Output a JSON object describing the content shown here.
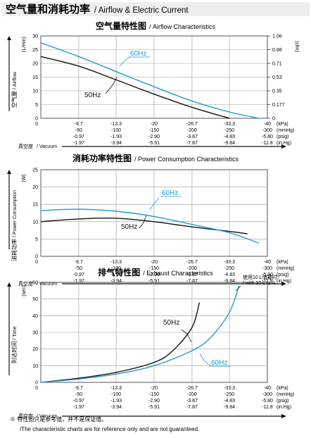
{
  "header": {
    "title_zh": "空气量和消耗功率",
    "title_en": "/ Airflow & Electric Current"
  },
  "vacuum_axis": {
    "row_kpa": [
      "-6.7",
      "-13.3",
      "-20",
      "-26.7",
      "-33.3",
      "-40"
    ],
    "row_mmhg": [
      "-50",
      "-100",
      "-150",
      "-200",
      "-250",
      "-300"
    ],
    "row_psig": [
      "-0.97",
      "-1.93",
      "-2.90",
      "-3.87",
      "-4.83",
      "-5.80"
    ],
    "row_inhg": [
      "-1.97",
      "-3.94",
      "-5.91",
      "-7.87",
      "-9.84",
      "-11.8"
    ],
    "units": [
      "(kPa)",
      "(mmHg)",
      "(psig)",
      "(in.Hg)"
    ],
    "origin_label": "0",
    "xlabel_zh": "真空度",
    "xlabel_en": "/ Vacuum"
  },
  "chart_data": [
    {
      "type": "line",
      "title_zh": "空气量特性图",
      "title_en": "/ Airflow Characteristics",
      "ylabel_zh": "空气量",
      "ylabel_en": "/ Airflow",
      "yunit": "(L/min)",
      "y2unit": "(cfm)",
      "ylim": [
        0,
        30
      ],
      "yticks": [
        "0",
        "5",
        "10",
        "15",
        "20",
        "25",
        "30"
      ],
      "y2ticks": [
        "0",
        "0.177",
        "0.35",
        "0.53",
        "0.71",
        "0.88",
        "1.06"
      ],
      "xlim": [
        0,
        40
      ],
      "series": [
        {
          "name": "50Hz",
          "color": "#111111",
          "x": [
            0,
            6.7,
            13.3,
            20,
            26.7,
            33.3
          ],
          "y": [
            22.5,
            19,
            14,
            8.8,
            4,
            0
          ]
        },
        {
          "name": "60Hz",
          "color": "#1e9ad6",
          "x": [
            0,
            6.7,
            13.3,
            20,
            26.7,
            33.3,
            38.5
          ],
          "y": [
            27.5,
            22.5,
            17,
            11.5,
            6.3,
            2.3,
            0
          ]
        }
      ]
    },
    {
      "type": "line",
      "title_zh": "消耗功率特性图",
      "title_en": "/ Power Consumption Characteristics",
      "ylabel_zh": "消耗功率",
      "ylabel_en": "/ Power Consumption",
      "yunit": "(W)",
      "ylim": [
        0,
        25
      ],
      "yticks": [
        "0",
        "5",
        "10",
        "15",
        "20",
        "25"
      ],
      "xlim": [
        0,
        40
      ],
      "series": [
        {
          "name": "50Hz",
          "color": "#111111",
          "x": [
            0,
            6.7,
            13.3,
            20,
            26.7,
            33.3,
            36.5
          ],
          "y": [
            10,
            10.8,
            11,
            10,
            8.5,
            7.2,
            6.5
          ]
        },
        {
          "name": "60Hz",
          "color": "#1e9ad6",
          "x": [
            0,
            6.7,
            13.3,
            20,
            26.7,
            33.3,
            38.5
          ],
          "y": [
            13.2,
            13.6,
            13,
            11.5,
            9.2,
            6.8,
            3.8
          ]
        }
      ]
    },
    {
      "type": "line",
      "title_zh": "排气特性图",
      "title_en": "/ Exhaust Characteristics",
      "ylabel_zh": "到达时间",
      "ylabel_en": "/ Time",
      "yunit": "(sec)",
      "ylim": [
        0,
        60
      ],
      "yticks": [
        "0",
        "10",
        "20",
        "30",
        "40",
        "50",
        "60"
      ],
      "xlim": [
        0,
        40
      ],
      "annotation_zh": "使用10 L储罐时",
      "annotation_en": "/ with 10 L tank",
      "series": [
        {
          "name": "50Hz",
          "color": "#111111",
          "x": [
            0,
            6.7,
            13.3,
            20,
            23.3,
            26.7,
            28
          ],
          "y": [
            0,
            2.5,
            6,
            12,
            19,
            33,
            48
          ]
        },
        {
          "name": "60Hz",
          "color": "#1e9ad6",
          "x": [
            0,
            6.7,
            13.3,
            20,
            26.7,
            30,
            33.3,
            35
          ],
          "y": [
            0,
            2,
            5,
            10,
            19,
            27,
            42,
            58
          ]
        }
      ]
    }
  ],
  "footnote": {
    "zh": "※ 特性图只是参考值，并不是保证值。",
    "en": "/The characteristic charts are for reference only and are not guaranteed."
  }
}
